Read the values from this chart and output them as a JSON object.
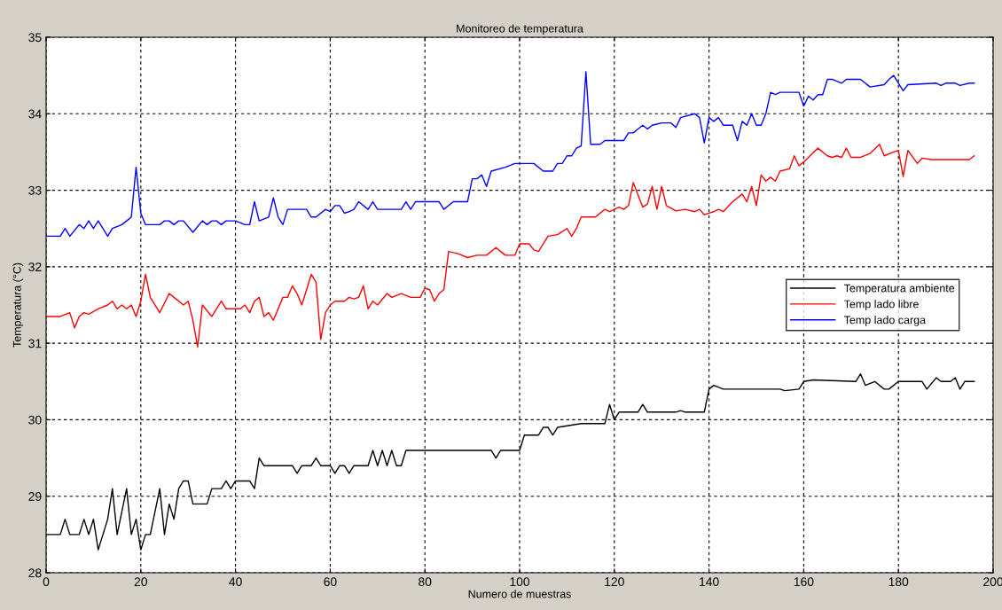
{
  "chart_data": {
    "type": "line",
    "title": "Monitoreo de temperatura",
    "xlabel": "Numero de muestras",
    "ylabel": "Temperatura (°C)",
    "xlim": [
      0,
      200
    ],
    "xticks": [
      0,
      20,
      40,
      60,
      80,
      100,
      120,
      140,
      160,
      180,
      200
    ],
    "ylim": [
      28,
      35
    ],
    "yticks": [
      28,
      29,
      30,
      31,
      32,
      33,
      34,
      35
    ],
    "grid": true,
    "legend": "right",
    "line_style": "solid",
    "marker": "none",
    "series": [
      {
        "name": "Temperatura ambiente",
        "color": "#000000",
        "x": [
          0,
          3,
          4,
          5,
          7,
          8,
          9,
          10,
          11,
          13,
          14,
          15,
          17,
          18,
          19,
          20,
          21,
          22,
          24,
          25,
          26,
          27,
          28,
          29,
          30,
          31,
          34,
          35,
          37,
          38,
          39,
          40,
          43,
          44,
          45,
          46,
          52,
          53,
          54,
          56,
          57,
          58,
          60,
          61,
          62,
          63,
          64,
          65,
          68,
          69,
          70,
          71,
          72,
          73,
          74,
          75,
          76,
          94,
          95,
          96,
          100,
          101,
          104,
          105,
          106,
          107,
          108,
          113,
          117,
          118,
          119,
          120,
          121,
          125,
          126,
          127,
          133,
          134,
          135,
          139,
          140,
          141,
          143,
          146,
          155,
          156,
          159,
          160,
          162,
          171,
          172,
          173,
          175,
          177,
          178,
          180,
          185,
          186,
          188,
          189,
          191,
          192,
          193,
          194,
          196
        ],
        "values": [
          28.5,
          28.5,
          28.7,
          28.5,
          28.5,
          28.7,
          28.5,
          28.7,
          28.3,
          28.7,
          29.1,
          28.5,
          29.1,
          28.5,
          28.7,
          28.3,
          28.5,
          28.5,
          29.1,
          28.5,
          28.9,
          28.7,
          29.1,
          29.2,
          29.2,
          28.9,
          28.9,
          29.1,
          29.1,
          29.2,
          29.1,
          29.2,
          29.2,
          29.1,
          29.5,
          29.4,
          29.4,
          29.3,
          29.4,
          29.4,
          29.5,
          29.4,
          29.4,
          29.3,
          29.4,
          29.4,
          29.3,
          29.4,
          29.4,
          29.6,
          29.4,
          29.6,
          29.4,
          29.6,
          29.4,
          29.4,
          29.6,
          29.6,
          29.5,
          29.6,
          29.6,
          29.8,
          29.8,
          29.9,
          29.9,
          29.8,
          29.9,
          29.95,
          29.95,
          29.95,
          30.2,
          30.0,
          30.1,
          30.1,
          30.2,
          30.1,
          30.1,
          30.12,
          30.1,
          30.1,
          30.4,
          30.45,
          30.4,
          30.4,
          30.4,
          30.38,
          30.4,
          30.5,
          30.52,
          30.5,
          30.6,
          30.45,
          30.5,
          30.4,
          30.4,
          30.5,
          30.5,
          30.4,
          30.55,
          30.5,
          30.5,
          30.55,
          30.4,
          30.5,
          30.5
        ]
      },
      {
        "name": "Temp lado libre",
        "color": "#ff0000",
        "x": [
          0,
          3,
          5,
          6,
          7,
          8,
          9,
          11,
          13,
          14,
          15,
          16,
          17,
          18,
          19,
          20,
          21,
          22,
          24,
          26,
          27,
          29,
          30,
          31,
          32,
          33,
          35,
          37,
          38,
          41,
          42,
          43,
          44,
          45,
          46,
          47,
          48,
          50,
          51,
          52,
          53,
          54,
          56,
          57,
          58,
          59,
          60,
          61,
          63,
          64,
          65,
          66,
          67,
          68,
          69,
          70,
          72,
          73,
          75,
          77,
          79,
          80,
          81,
          82,
          83,
          84,
          85,
          87,
          89,
          91,
          93,
          95,
          96,
          97,
          99,
          100,
          101,
          102,
          103,
          104,
          106,
          108,
          110,
          111,
          112,
          113,
          116,
          118,
          119,
          121,
          122,
          123,
          124,
          126,
          127,
          128,
          129,
          130,
          131,
          133,
          135,
          137,
          138,
          139,
          140,
          141,
          142,
          143,
          145,
          147,
          148,
          149,
          150,
          151,
          152,
          153,
          154,
          155,
          157,
          158,
          159,
          160,
          161,
          163,
          165,
          166,
          167,
          168,
          169,
          170,
          172,
          174,
          176,
          177,
          179,
          180,
          181,
          182,
          184,
          185,
          187,
          195,
          196
        ],
        "values": [
          31.35,
          31.35,
          31.4,
          31.2,
          31.35,
          31.4,
          31.38,
          31.45,
          31.5,
          31.55,
          31.45,
          31.5,
          31.45,
          31.5,
          31.35,
          31.55,
          31.9,
          31.6,
          31.4,
          31.65,
          31.6,
          31.5,
          31.55,
          31.3,
          30.95,
          31.5,
          31.35,
          31.55,
          31.45,
          31.45,
          31.5,
          31.4,
          31.55,
          31.6,
          31.35,
          31.4,
          31.3,
          31.6,
          31.6,
          31.75,
          31.65,
          31.5,
          31.9,
          31.8,
          31.05,
          31.4,
          31.5,
          31.55,
          31.55,
          31.6,
          31.58,
          31.6,
          31.75,
          31.45,
          31.55,
          31.5,
          31.65,
          31.6,
          31.65,
          31.6,
          31.6,
          31.72,
          31.7,
          31.55,
          31.65,
          31.7,
          32.2,
          32.17,
          32.12,
          32.15,
          32.15,
          32.25,
          32.2,
          32.15,
          32.15,
          32.3,
          32.3,
          32.3,
          32.22,
          32.2,
          32.4,
          32.42,
          32.5,
          32.4,
          32.5,
          32.65,
          32.65,
          32.75,
          32.72,
          32.78,
          32.75,
          32.8,
          33.1,
          32.78,
          32.82,
          33.05,
          32.75,
          33.05,
          32.8,
          32.73,
          32.75,
          32.72,
          32.75,
          32.68,
          32.7,
          32.72,
          32.75,
          32.72,
          32.85,
          32.95,
          32.85,
          33.05,
          32.8,
          33.2,
          33.12,
          33.17,
          33.12,
          33.25,
          33.28,
          33.45,
          33.32,
          33.37,
          33.43,
          33.55,
          33.45,
          33.43,
          33.45,
          33.43,
          33.55,
          33.43,
          33.43,
          33.48,
          33.6,
          33.45,
          33.5,
          33.52,
          33.18,
          33.52,
          33.35,
          33.42,
          33.4,
          33.4,
          33.45
        ]
      },
      {
        "name": "Temp lado carga",
        "color": "#0000ff",
        "x": [
          0,
          3,
          4,
          5,
          7,
          8,
          9,
          10,
          11,
          12,
          13,
          14,
          16,
          17,
          18,
          19,
          20,
          21,
          24,
          25,
          26,
          27,
          28,
          29,
          31,
          33,
          34,
          35,
          36,
          37,
          38,
          40,
          42,
          43,
          44,
          45,
          47,
          48,
          49,
          50,
          51,
          55,
          56,
          57,
          59,
          60,
          61,
          62,
          63,
          64,
          65,
          66,
          68,
          69,
          70,
          71,
          72,
          75,
          76,
          77,
          78,
          83,
          84,
          85,
          86,
          89,
          90,
          91,
          92,
          93,
          94,
          97,
          99,
          103,
          105,
          107,
          108,
          109,
          110,
          111,
          112,
          113,
          114,
          115,
          116,
          117,
          118,
          119,
          120,
          122,
          123,
          124,
          125,
          126,
          127,
          128,
          130,
          132,
          133,
          134,
          137,
          138,
          139,
          140,
          141,
          142,
          143,
          145,
          146,
          147,
          148,
          149,
          150,
          151,
          152,
          153,
          154,
          155,
          157,
          159,
          160,
          161,
          162,
          163,
          164,
          165,
          166,
          168,
          169,
          172,
          174,
          177,
          178,
          179,
          180,
          181,
          182,
          188,
          189,
          190,
          192,
          193,
          195,
          196
        ],
        "values": [
          32.4,
          32.4,
          32.5,
          32.4,
          32.55,
          32.5,
          32.6,
          32.5,
          32.6,
          32.5,
          32.4,
          32.5,
          32.55,
          32.6,
          32.65,
          33.3,
          32.7,
          32.55,
          32.55,
          32.6,
          32.6,
          32.55,
          32.6,
          32.6,
          32.45,
          32.6,
          32.55,
          32.6,
          32.6,
          32.55,
          32.6,
          32.6,
          32.55,
          32.55,
          32.85,
          32.6,
          32.65,
          32.9,
          32.65,
          32.55,
          32.75,
          32.75,
          32.65,
          32.65,
          32.75,
          32.72,
          32.8,
          32.8,
          32.7,
          32.72,
          32.75,
          32.85,
          32.75,
          32.85,
          32.75,
          32.75,
          32.75,
          32.75,
          32.85,
          32.75,
          32.85,
          32.85,
          32.75,
          32.8,
          32.85,
          32.85,
          33.15,
          33.15,
          33.2,
          33.05,
          33.25,
          33.3,
          33.35,
          33.35,
          33.25,
          33.25,
          33.35,
          33.35,
          33.45,
          33.45,
          33.55,
          33.58,
          34.55,
          33.6,
          33.6,
          33.6,
          33.65,
          33.65,
          33.65,
          33.65,
          33.75,
          33.75,
          33.8,
          33.85,
          33.8,
          33.85,
          33.88,
          33.88,
          33.82,
          33.95,
          34.0,
          33.95,
          33.62,
          33.95,
          33.9,
          33.95,
          33.85,
          33.85,
          33.65,
          33.9,
          33.85,
          34.0,
          33.85,
          33.85,
          34.0,
          34.28,
          34.25,
          34.28,
          34.28,
          34.28,
          34.1,
          34.23,
          34.18,
          34.25,
          34.25,
          34.45,
          34.45,
          34.4,
          34.45,
          34.45,
          34.35,
          34.38,
          34.45,
          34.5,
          34.4,
          34.3,
          34.38,
          34.4,
          34.37,
          34.4,
          34.4,
          34.37,
          34.4,
          34.4
        ]
      }
    ]
  }
}
